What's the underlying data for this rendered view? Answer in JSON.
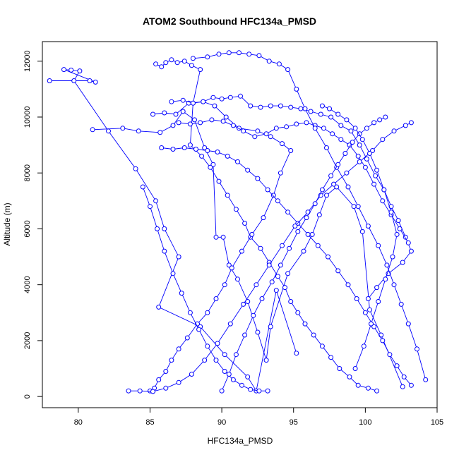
{
  "chart_data": {
    "type": "scatter",
    "title": "ATOM2 Southbound HFC134a_PMSD",
    "xlabel": "HFC134a_PMSD",
    "ylabel": "Altitude (m)",
    "xlim": [
      77.5,
      105.0
    ],
    "ylim": [
      -400,
      12700
    ],
    "xticks": [
      "80",
      "85",
      "90",
      "95",
      "100",
      "105"
    ],
    "yticks": [
      "0",
      "2000",
      "4000",
      "6000",
      "8000",
      "10000",
      "12000"
    ],
    "series_color": "#0000ff",
    "grid": false,
    "connected": true,
    "marker": "open-circle",
    "series": [
      {
        "x": [
          78.0,
          80.8,
          81.2,
          79.0,
          79.5,
          80.1,
          79.7,
          82.1,
          84.0,
          85.4,
          86.0,
          87.0,
          85.6,
          88.5,
          90.2,
          91.8,
          92.4,
          93.8,
          95.2
        ],
        "y": [
          11300,
          11300,
          11250,
          11700,
          11680,
          11650,
          11300,
          9500,
          8150,
          7000,
          6000,
          5000,
          3200,
          2500,
          1500,
          700,
          200,
          3800,
          1550
        ]
      },
      {
        "x": [
          81.0,
          83.1,
          84.2,
          85.7,
          86.6,
          87.3,
          88.1,
          88.8,
          89.4,
          89.6,
          90.1,
          90.5,
          91.1,
          91.8,
          92.5,
          93.1,
          93.4,
          94.6,
          95.7,
          96.3,
          96.8,
          97.3,
          98.0,
          99.2,
          99.8,
          100.3,
          101.1,
          102.6
        ],
        "y": [
          9550,
          9600,
          9500,
          9450,
          9700,
          10200,
          9900,
          8900,
          8300,
          5700,
          5700,
          4700,
          4200,
          3400,
          2300,
          1300,
          2500,
          4400,
          5200,
          5800,
          6500,
          7200,
          7500,
          6800,
          5900,
          3100,
          2200,
          350
        ]
      },
      {
        "x": [
          85.4,
          85.8,
          86.1,
          86.5,
          86.9,
          87.4,
          87.9,
          88.5,
          88.0,
          87.8,
          88.6,
          89.2,
          89.8,
          90.4,
          91.0,
          91.6,
          92.0,
          92.7,
          93.3,
          93.9,
          94.4,
          94.8,
          95.3,
          95.8,
          96.4,
          97.0,
          97.6,
          98.2,
          98.9,
          99.5,
          100.2,
          100.8
        ],
        "y": [
          11900,
          11800,
          11950,
          12050,
          11950,
          12000,
          11850,
          11700,
          10500,
          9000,
          8600,
          8200,
          7700,
          7200,
          6700,
          6200,
          5700,
          5300,
          4800,
          4300,
          3900,
          3400,
          3000,
          2600,
          2200,
          1800,
          1400,
          1000,
          700,
          400,
          300,
          200
        ]
      },
      {
        "x": [
          85.2,
          86.0,
          86.8,
          87.7,
          88.7,
          89.5,
          90.3,
          91.2,
          92.5,
          93.4,
          94.2,
          94.8,
          94.1,
          93.6,
          92.9,
          92.1,
          91.4,
          90.7,
          90.2,
          89.6,
          89.0,
          88.3,
          87.6,
          87.0,
          86.5,
          86.1,
          85.6,
          85.3,
          85.0
        ],
        "y": [
          10100,
          10150,
          10100,
          10500,
          10550,
          10400,
          10000,
          9600,
          9500,
          9300,
          9050,
          8800,
          8000,
          7200,
          6400,
          5800,
          5200,
          4600,
          4000,
          3500,
          3000,
          2600,
          2100,
          1700,
          1300,
          900,
          600,
          300,
          200
        ]
      },
      {
        "x": [
          86.5,
          87.3,
          88.0,
          88.7,
          89.4,
          90.0,
          90.6,
          91.3,
          92.0,
          92.7,
          93.4,
          94.1,
          94.8,
          95.5,
          96.2,
          96.9,
          97.6,
          98.3,
          99.0,
          99.6,
          100.1,
          100.7,
          101.3,
          101.8,
          102.3,
          102.8,
          103.2,
          102.6,
          101.6,
          100.8,
          100.2
        ],
        "y": [
          10550,
          10600,
          10500,
          10550,
          10700,
          10650,
          10700,
          10750,
          10400,
          10350,
          10400,
          10400,
          10350,
          10300,
          10200,
          10100,
          10000,
          9700,
          9500,
          9000,
          8500,
          7900,
          7400,
          6800,
          6300,
          5700,
          5200,
          4800,
          4400,
          3900,
          3500
        ]
      },
      {
        "x": [
          87.0,
          87.8,
          88.5,
          89.3,
          90.1,
          90.8,
          91.5,
          92.3,
          93.1,
          93.8,
          94.5,
          95.2,
          95.9,
          96.5,
          97.1,
          97.7,
          98.3,
          98.9,
          99.5,
          100.0,
          100.6,
          101.2,
          101.8,
          102.4,
          103.0
        ],
        "y": [
          9800,
          9750,
          9800,
          9900,
          9850,
          9700,
          9500,
          9300,
          9400,
          9600,
          9650,
          9750,
          9800,
          9700,
          9600,
          9400,
          9200,
          9000,
          8600,
          8200,
          7600,
          7000,
          6500,
          6000,
          5500
        ]
      },
      {
        "x": [
          85.8,
          86.6,
          87.4,
          88.2,
          89.0,
          89.7,
          90.4,
          91.1,
          91.8,
          92.5,
          93.2,
          93.9,
          94.6,
          95.3,
          96.0,
          96.7,
          97.4,
          98.1,
          98.8,
          99.4,
          100.0,
          100.6,
          101.2,
          101.7,
          102.2,
          102.7,
          103.2
        ],
        "y": [
          8900,
          8850,
          8900,
          8850,
          8800,
          8750,
          8600,
          8400,
          8100,
          7800,
          7400,
          7000,
          6600,
          6200,
          5800,
          5400,
          5000,
          4500,
          4000,
          3500,
          3000,
          2500,
          2000,
          1500,
          1100,
          700,
          400
        ]
      },
      {
        "x": [
          88.0,
          89.0,
          89.8,
          90.5,
          91.2,
          91.9,
          92.6,
          93.3,
          94.0,
          94.6,
          95.2,
          95.8,
          96.5,
          97.3,
          98.0,
          98.8,
          99.5,
          100.2,
          100.9,
          101.5,
          102.0,
          102.5,
          103.0,
          103.6,
          104.2
        ],
        "y": [
          12100,
          12150,
          12250,
          12300,
          12300,
          12250,
          12200,
          12000,
          11900,
          11700,
          11000,
          10300,
          9600,
          8900,
          8200,
          7500,
          6800,
          6100,
          5400,
          4700,
          4000,
          3300,
          2600,
          1700,
          600
        ]
      },
      {
        "x": [
          84.5,
          85.0,
          85.5,
          86.0,
          86.6,
          87.2,
          87.8,
          88.4,
          89.0,
          89.6,
          90.2,
          90.8,
          91.4,
          92.0,
          92.6,
          93.2
        ],
        "y": [
          7500,
          6800,
          6000,
          5200,
          4400,
          3700,
          3000,
          2400,
          1800,
          1300,
          900,
          600,
          400,
          250,
          200,
          200
        ]
      },
      {
        "x": [
          83.5,
          84.3,
          85.2,
          86.1,
          87.0,
          87.9,
          88.8,
          89.7,
          90.6,
          91.5,
          92.4,
          93.3,
          94.2,
          95.1,
          96.0,
          96.9,
          97.8,
          98.7,
          99.6,
          100.5,
          101.2,
          102.0,
          102.8,
          103.2
        ],
        "y": [
          200,
          200,
          180,
          300,
          500,
          800,
          1300,
          1900,
          2600,
          3300,
          4000,
          4700,
          5400,
          6100,
          6600,
          7200,
          7600,
          8000,
          8400,
          8800,
          9200,
          9500,
          9700,
          9800
        ]
      },
      {
        "x": [
          90.0,
          90.5,
          91.0,
          91.6,
          92.2,
          92.8,
          93.5,
          94.1,
          94.7,
          95.3,
          95.9,
          96.5,
          97.0,
          97.6,
          98.1,
          98.6,
          99.1,
          99.6,
          100.1,
          100.6,
          101.0,
          101.4
        ],
        "y": [
          200,
          800,
          1500,
          2200,
          2900,
          3500,
          4100,
          4700,
          5300,
          5900,
          6400,
          6900,
          7400,
          7900,
          8300,
          8700,
          9100,
          9400,
          9600,
          9800,
          9900,
          10000
        ]
      },
      {
        "x": [
          97.0,
          97.5,
          98.1,
          98.7,
          99.3,
          99.8,
          100.3,
          100.8,
          101.3,
          101.8,
          102.2,
          101.9,
          101.4,
          100.9,
          100.4,
          99.9,
          99.3
        ],
        "y": [
          10400,
          10300,
          10100,
          9900,
          9600,
          9200,
          8700,
          8100,
          7400,
          6600,
          5800,
          5000,
          4200,
          3400,
          2600,
          1800,
          1000
        ]
      }
    ]
  }
}
